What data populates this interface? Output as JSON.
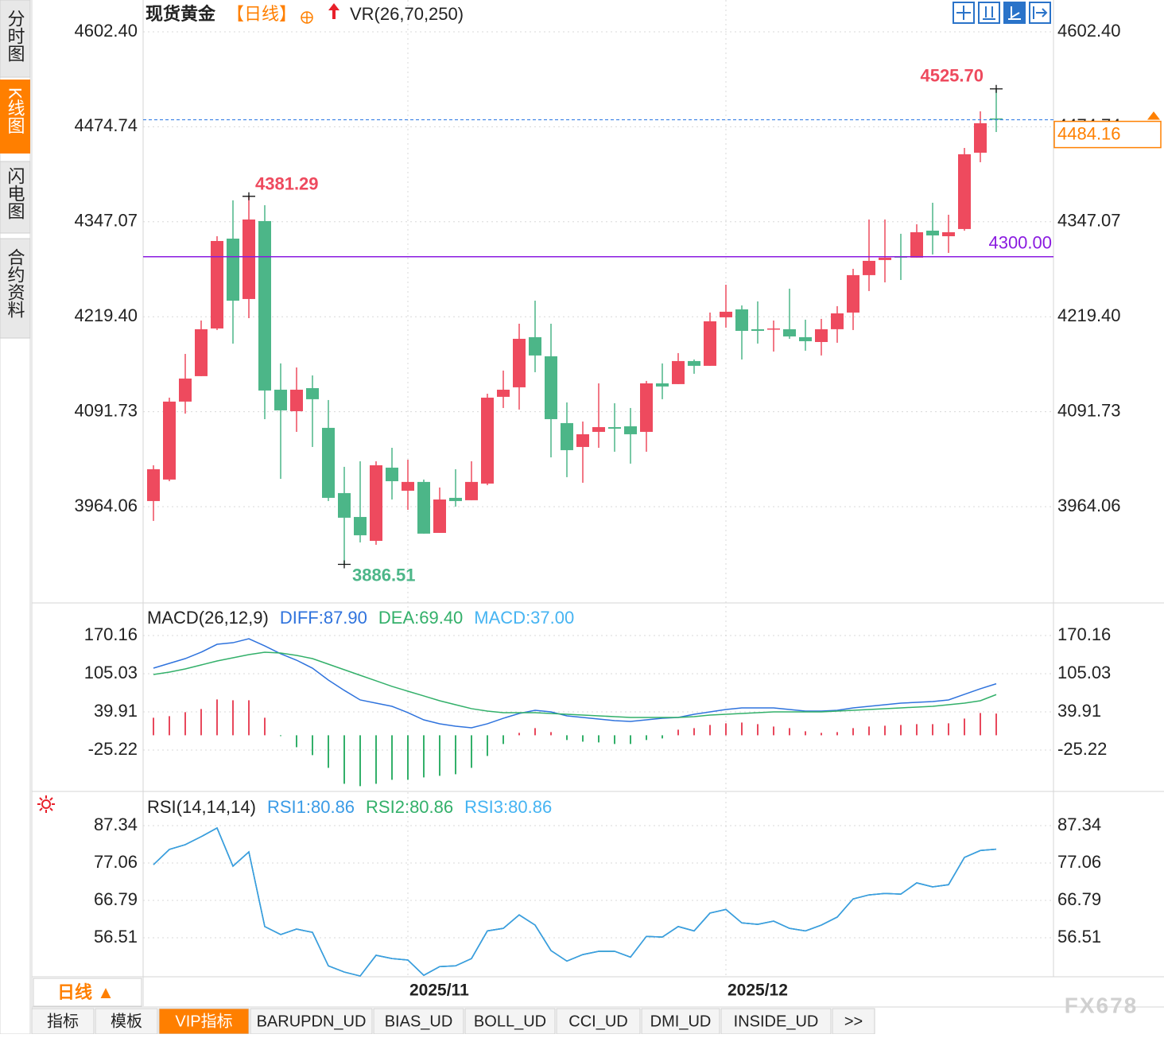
{
  "sidebar": {
    "tabs": [
      "分时图",
      "K线图",
      "闪电图",
      "合约资料"
    ]
  },
  "footer": {
    "period": "日线 ▲",
    "tabs": [
      "指标",
      "模板",
      "VIP指标",
      "BARUPDN_UD",
      "BIAS_UD",
      "BOLL_UD",
      "CCI_UD",
      "DMI_UD",
      "INSIDE_UD",
      ">>"
    ]
  },
  "watermark": "FX678",
  "chart_data": [
    {
      "type": "candlestick",
      "title": "现货黄金",
      "period": "【日线】",
      "indicator": "VR(26,70,250)",
      "categories": [
        null,
        null,
        null,
        null,
        null,
        null,
        null,
        null,
        null,
        null,
        null,
        null,
        null,
        null,
        null,
        null,
        "2025/11",
        null,
        null,
        null,
        null,
        null,
        null,
        null,
        null,
        null,
        null,
        null,
        null,
        null,
        null,
        null,
        null,
        null,
        null,
        null,
        "2025/12",
        null,
        null,
        null,
        null,
        null,
        null,
        null,
        null,
        null,
        null,
        null,
        null,
        null,
        null,
        null,
        null,
        null
      ],
      "open": [
        3971.6,
        4000.5,
        4105.3,
        4139.5,
        4203.6,
        4324.4,
        4243.2,
        4348.0,
        4121.3,
        4092.4,
        4123.4,
        4070.0,
        3982.3,
        3950.2,
        3918.1,
        4016.5,
        3985.5,
        3997.3,
        3928.8,
        3975.9,
        3972.7,
        3995.1,
        4111.7,
        4124.5,
        4191.9,
        4166.2,
        4076.4,
        4044.3,
        4064.6,
        4071.0,
        4072.1,
        4064.6,
        4129.8,
        4128.8,
        4159.8,
        4153.4,
        4218.6,
        4229.3,
        4202.6,
        4202.6,
        4202.6,
        4191.9,
        4185.4,
        4202.6,
        4225.0,
        4275.3,
        4295.6,
        4300.9,
        4298.8,
        4335.1,
        4327.6,
        4337.3,
        4439.9,
        4486.0
      ],
      "high": [
        4019.7,
        4110.6,
        4169.4,
        4214.3,
        4327.6,
        4375.8,
        4381.29,
        4369.3,
        4156.6,
        4151.2,
        4140.5,
        4107.4,
        4017.6,
        4025.1,
        4025.1,
        4043.2,
        4027.2,
        4000.5,
        3989.8,
        4014.4,
        4025.1,
        4115.9,
        4147.0,
        4210.0,
        4241.0,
        4210.0,
        4104.2,
        4078.5,
        4129.8,
        4103.1,
        4096.7,
        4133.1,
        4156.6,
        4170.5,
        4161.9,
        4225.0,
        4262.4,
        4234.6,
        4240.0,
        4214.3,
        4257.1,
        4215.4,
        4216.5,
        4233.6,
        4283.8,
        4350.1,
        4350.1,
        4330.9,
        4343.7,
        4372.6,
        4356.5,
        4446.3,
        4495.5,
        4525.7
      ],
      "low": [
        3944.9,
        3998.3,
        4089.2,
        4139.5,
        4201.5,
        4183.3,
        4217.5,
        4081.7,
        4001.5,
        4064.6,
        4044.3,
        3971.6,
        3886.51,
        3916.0,
        3912.8,
        3973.7,
        3959.8,
        3927.8,
        3928.8,
        3964.1,
        3972.7,
        3993.0,
        4096.7,
        4094.6,
        4144.8,
        4030.4,
        4003.7,
        3996.2,
        4043.2,
        4037.9,
        4021.9,
        4037.9,
        4108.5,
        4128.8,
        4142.7,
        4153.4,
        4204.7,
        4161.9,
        4183.3,
        4172.6,
        4189.7,
        4173.7,
        4167.3,
        4184.4,
        4201.5,
        4253.9,
        4265.6,
        4268.8,
        4298.8,
        4303.1,
        4305.2,
        4335.1,
        4427.1,
        4467.7
      ],
      "close": [
        4014.4,
        4105.3,
        4136.3,
        4202.6,
        4321.2,
        4241.0,
        4350.1,
        4120.2,
        4093.5,
        4121.3,
        4108.5,
        3975.9,
        3949.2,
        3925.6,
        4019.7,
        3998.3,
        3997.3,
        3927.8,
        3973.7,
        3971.6,
        3997.3,
        4110.6,
        4121.3,
        4189.7,
        4167.3,
        4081.7,
        4040.0,
        4061.4,
        4071.0,
        4068.9,
        4061.4,
        4129.8,
        4125.6,
        4159.8,
        4153.4,
        4213.2,
        4226.1,
        4200.4,
        4200.4,
        4203.6,
        4192.9,
        4186.5,
        4202.6,
        4223.9,
        4275.3,
        4294.5,
        4298.8,
        4298.8,
        4333.0,
        4328.7,
        4333.0,
        4437.8,
        4479.5,
        4484.16
      ],
      "up_color": "#ee4a5e",
      "down_color": "#4cb688",
      "ylim": [
        3836.8,
        4640.9
      ],
      "yticks": [
        {
          "value": 4602.4,
          "label": "4602.40"
        },
        4474.74,
        4347.07,
        {
          "value": 4219.4,
          "label": "4219.40"
        },
        4091.73,
        3964.06
      ],
      "grid": true,
      "hline": {
        "value": 4300,
        "label": "4300.00",
        "color": "#8a1be0"
      },
      "last_price": 4484.16,
      "last_line_color": "#3b82e6",
      "last_label_color": "#ff8000",
      "annotations": [
        {
          "value": 4525.7,
          "label": "4525.70"
        },
        4381.29,
        3886.51
      ]
    },
    {
      "type": "macd",
      "title": "MACD(26,12,9)",
      "ylim": [
        -93.1,
        223.1
      ],
      "yticks": [
        170.16,
        105.03,
        39.91,
        -25.22
      ],
      "grid": true,
      "up_color": "#e8485c",
      "down_color": "#33b06a",
      "series": [
        {
          "name": "DIFF:87.90",
          "color": "#2f73dd",
          "values": [
            114.5,
            122.7,
            130.8,
            141.7,
            155.2,
            157.9,
            164.7,
            152.5,
            139.0,
            128.1,
            114.5,
            94.2,
            76.6,
            60.3,
            54.8,
            49.4,
            38.6,
            26.3,
            19.6,
            15.5,
            12.8,
            19.6,
            29.0,
            37.2,
            42.6,
            39.9,
            33.1,
            30.4,
            27.7,
            25.0,
            23.6,
            26.3,
            29.0,
            30.4,
            35.8,
            39.9,
            44.0,
            46.7,
            46.7,
            46.7,
            44.0,
            41.3,
            41.3,
            42.6,
            46.7,
            49.4,
            52.1,
            54.8,
            56.2,
            57.6,
            60.3,
            69.8,
            79.3,
            87.9
          ]
        },
        {
          "name": "DEA:69.40",
          "color": "#33b06a",
          "values": [
            103.7,
            107.8,
            113.2,
            120.0,
            126.8,
            132.2,
            137.6,
            141.7,
            140.3,
            136.3,
            130.8,
            121.3,
            111.8,
            102.3,
            92.9,
            83.4,
            75.2,
            67.1,
            58.9,
            52.1,
            45.4,
            41.3,
            38.6,
            38.6,
            38.6,
            37.2,
            35.8,
            34.5,
            33.1,
            31.8,
            30.4,
            30.4,
            30.4,
            30.4,
            31.8,
            34.5,
            35.8,
            37.2,
            38.6,
            39.9,
            39.9,
            39.9,
            39.9,
            41.3,
            42.6,
            44.0,
            45.4,
            46.7,
            48.1,
            49.4,
            52.1,
            54.8,
            58.9,
            69.4
          ]
        },
        {
          "name": "MACD:37.00",
          "color": "#46b4f2",
          "type": "bar",
          "values": [
            29.9,
            32.6,
            39.4,
            44.8,
            61.1,
            59.7,
            59.7,
            29.9,
            -1.4,
            -20.4,
            -33.9,
            -55.6,
            -82.8,
            -86.8,
            -82.8,
            -76.0,
            -76.0,
            -71.9,
            -69.2,
            -66.5,
            -55.6,
            -35.3,
            -14.9,
            4.1,
            12.2,
            5.4,
            -8.1,
            -10.9,
            -12.2,
            -14.9,
            -14.9,
            -8.1,
            -5.4,
            9.5,
            12.2,
            17.6,
            20.4,
            21.7,
            19.0,
            14.9,
            12.2,
            6.8,
            4.1,
            5.4,
            12.2,
            14.9,
            16.3,
            17.6,
            19.0,
            19.0,
            20.4,
            28.5,
            38.0,
            37
          ]
        }
      ]
    },
    {
      "type": "line",
      "title": "RSI(14,14,14)",
      "ylim": [
        45.8,
        96.3
      ],
      "yticks": [
        87.34,
        77.06,
        66.79,
        56.51
      ],
      "grid": true,
      "series": [
        {
          "name": "RSI1:80.86",
          "color": "#3a9be6",
          "values": [
            76.6,
            80.8,
            82.1,
            84.3,
            86.7,
            76.2,
            80.1,
            59.6,
            57.4,
            58.9,
            58.0,
            48.8,
            47.1,
            46.0,
            51.7,
            50.8,
            50.4,
            46.2,
            48.6,
            48.8,
            50.8,
            58.4,
            59.1,
            62.8,
            60.0,
            53.0,
            50.1,
            51.9,
            52.8,
            52.8,
            51.2,
            56.9,
            56.7,
            59.6,
            58.4,
            63.3,
            64.3,
            60.6,
            60.2,
            61.1,
            59.1,
            58.4,
            60.0,
            62.2,
            67.2,
            68.3,
            68.7,
            68.5,
            71.6,
            70.5,
            71.1,
            78.6,
            80.5,
            80.86
          ]
        },
        {
          "name": "RSI2:80.86",
          "color": "#33b06a",
          "values": [
            76.6,
            80.8,
            82.1,
            84.3,
            86.7,
            76.2,
            80.1,
            59.6,
            57.4,
            58.9,
            58.0,
            48.8,
            47.1,
            46.0,
            51.7,
            50.8,
            50.4,
            46.2,
            48.6,
            48.8,
            50.8,
            58.4,
            59.1,
            62.8,
            60.0,
            53.0,
            50.1,
            51.9,
            52.8,
            52.8,
            51.2,
            56.9,
            56.7,
            59.6,
            58.4,
            63.3,
            64.3,
            60.6,
            60.2,
            61.1,
            59.1,
            58.4,
            60.0,
            62.2,
            67.2,
            68.3,
            68.7,
            68.5,
            71.6,
            70.5,
            71.1,
            78.6,
            80.5,
            80.86
          ]
        },
        {
          "name": "RSI3:80.86",
          "color": "#46b4f2",
          "values": [
            76.6,
            80.8,
            82.1,
            84.3,
            86.7,
            76.2,
            80.1,
            59.6,
            57.4,
            58.9,
            58.0,
            48.8,
            47.1,
            46.0,
            51.7,
            50.8,
            50.4,
            46.2,
            48.6,
            48.8,
            50.8,
            58.4,
            59.1,
            62.8,
            60.0,
            53.0,
            50.1,
            51.9,
            52.8,
            52.8,
            51.2,
            56.9,
            56.7,
            59.6,
            58.4,
            63.3,
            64.3,
            60.6,
            60.2,
            61.1,
            59.1,
            58.4,
            60.0,
            62.2,
            67.2,
            68.3,
            68.7,
            68.5,
            71.6,
            70.5,
            71.1,
            78.6,
            80.5,
            80.86
          ]
        }
      ]
    }
  ]
}
